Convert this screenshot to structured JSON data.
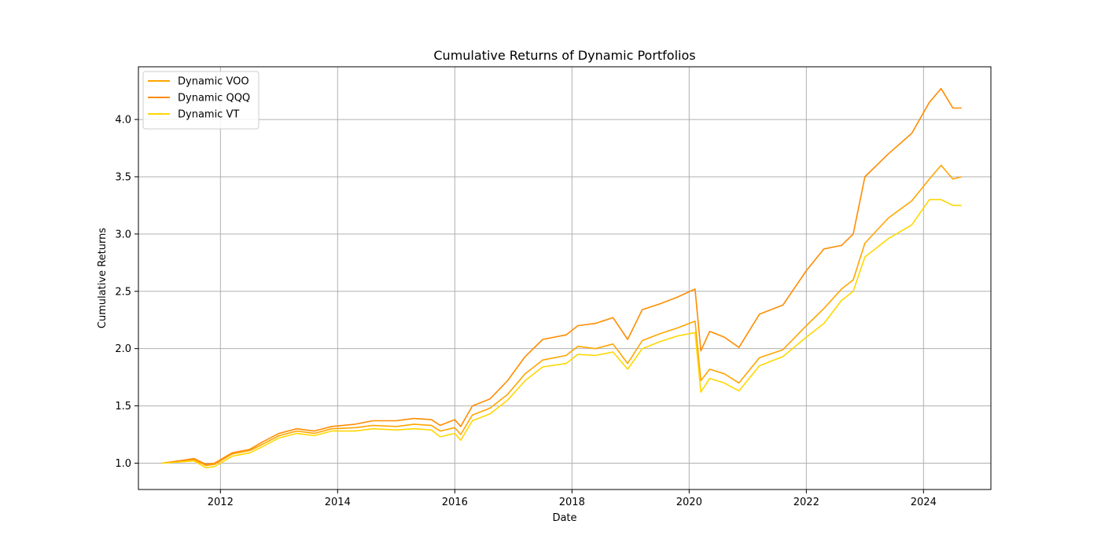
{
  "chart_data": {
    "type": "line",
    "title": "Cumulative Returns of Dynamic Portfolios",
    "xlabel": "Date",
    "ylabel": "Cumulative Returns",
    "xlim": [
      2010.6,
      2025.15
    ],
    "ylim": [
      0.77,
      4.46
    ],
    "x_ticks": [
      2012,
      2014,
      2016,
      2018,
      2020,
      2022,
      2024
    ],
    "y_ticks": [
      1.0,
      1.5,
      2.0,
      2.5,
      3.0,
      3.5,
      4.0
    ],
    "x_tick_labels": [
      "2012",
      "2014",
      "2016",
      "2018",
      "2020",
      "2022",
      "2024"
    ],
    "y_tick_labels": [
      "1.0",
      "1.5",
      "2.0",
      "2.5",
      "3.0",
      "3.5",
      "4.0"
    ],
    "grid": true,
    "legend_position": "upper-left",
    "series": [
      {
        "name": "Dynamic VOO",
        "color": "#ffa500",
        "x": [
          2011.0,
          2011.3,
          2011.55,
          2011.75,
          2011.9,
          2012.2,
          2012.5,
          2012.7,
          2013.0,
          2013.3,
          2013.6,
          2013.9,
          2014.3,
          2014.6,
          2015.0,
          2015.3,
          2015.6,
          2015.75,
          2016.0,
          2016.1,
          2016.3,
          2016.6,
          2016.9,
          2017.2,
          2017.5,
          2017.9,
          2018.1,
          2018.4,
          2018.7,
          2018.95,
          2019.2,
          2019.5,
          2019.8,
          2020.1,
          2020.2,
          2020.35,
          2020.6,
          2020.85,
          2021.2,
          2021.6,
          2022.0,
          2022.3,
          2022.6,
          2022.8,
          2023.0,
          2023.4,
          2023.8,
          2024.1,
          2024.3,
          2024.5,
          2024.65
        ],
        "y": [
          1.0,
          1.02,
          1.03,
          0.98,
          0.99,
          1.08,
          1.11,
          1.16,
          1.24,
          1.28,
          1.26,
          1.3,
          1.31,
          1.33,
          1.32,
          1.34,
          1.33,
          1.28,
          1.31,
          1.25,
          1.42,
          1.48,
          1.6,
          1.78,
          1.9,
          1.94,
          2.02,
          2.0,
          2.04,
          1.87,
          2.07,
          2.13,
          2.18,
          2.24,
          1.72,
          1.82,
          1.78,
          1.7,
          1.92,
          1.99,
          2.2,
          2.35,
          2.52,
          2.6,
          2.92,
          3.14,
          3.29,
          3.48,
          3.6,
          3.48,
          3.5
        ]
      },
      {
        "name": "Dynamic QQQ",
        "color": "#ff8c00",
        "x": [
          2011.0,
          2011.3,
          2011.55,
          2011.75,
          2011.9,
          2012.2,
          2012.5,
          2012.7,
          2013.0,
          2013.3,
          2013.6,
          2013.9,
          2014.3,
          2014.6,
          2015.0,
          2015.3,
          2015.6,
          2015.75,
          2016.0,
          2016.1,
          2016.3,
          2016.6,
          2016.9,
          2017.2,
          2017.5,
          2017.9,
          2018.1,
          2018.4,
          2018.7,
          2018.95,
          2019.2,
          2019.5,
          2019.8,
          2020.1,
          2020.2,
          2020.35,
          2020.6,
          2020.85,
          2021.2,
          2021.6,
          2022.0,
          2022.3,
          2022.6,
          2022.8,
          2023.0,
          2023.4,
          2023.8,
          2024.1,
          2024.3,
          2024.5,
          2024.65
        ],
        "y": [
          1.0,
          1.02,
          1.04,
          0.99,
          1.0,
          1.09,
          1.12,
          1.18,
          1.26,
          1.3,
          1.28,
          1.32,
          1.34,
          1.37,
          1.37,
          1.39,
          1.38,
          1.33,
          1.38,
          1.32,
          1.5,
          1.56,
          1.72,
          1.93,
          2.08,
          2.12,
          2.2,
          2.22,
          2.27,
          2.08,
          2.34,
          2.39,
          2.45,
          2.52,
          1.98,
          2.15,
          2.1,
          2.01,
          2.3,
          2.38,
          2.68,
          2.87,
          2.9,
          3.0,
          3.5,
          3.7,
          3.88,
          4.15,
          4.27,
          4.1,
          4.1
        ]
      },
      {
        "name": "Dynamic VT",
        "color": "#ffd700",
        "x": [
          2011.0,
          2011.3,
          2011.55,
          2011.75,
          2011.9,
          2012.2,
          2012.5,
          2012.7,
          2013.0,
          2013.3,
          2013.6,
          2013.9,
          2014.3,
          2014.6,
          2015.0,
          2015.3,
          2015.6,
          2015.75,
          2016.0,
          2016.1,
          2016.3,
          2016.6,
          2016.9,
          2017.2,
          2017.5,
          2017.9,
          2018.1,
          2018.4,
          2018.7,
          2018.95,
          2019.2,
          2019.5,
          2019.8,
          2020.1,
          2020.2,
          2020.35,
          2020.6,
          2020.85,
          2021.2,
          2021.6,
          2022.0,
          2022.3,
          2022.6,
          2022.8,
          2023.0,
          2023.4,
          2023.8,
          2024.1,
          2024.3,
          2024.5,
          2024.65
        ],
        "y": [
          1.0,
          1.01,
          1.02,
          0.96,
          0.97,
          1.06,
          1.09,
          1.14,
          1.22,
          1.26,
          1.24,
          1.28,
          1.28,
          1.3,
          1.29,
          1.3,
          1.29,
          1.23,
          1.26,
          1.2,
          1.37,
          1.43,
          1.55,
          1.72,
          1.84,
          1.87,
          1.95,
          1.94,
          1.97,
          1.82,
          2.0,
          2.06,
          2.11,
          2.14,
          1.62,
          1.74,
          1.7,
          1.63,
          1.85,
          1.93,
          2.1,
          2.22,
          2.42,
          2.5,
          2.8,
          2.96,
          3.08,
          3.3,
          3.3,
          3.25,
          3.25
        ]
      }
    ]
  }
}
